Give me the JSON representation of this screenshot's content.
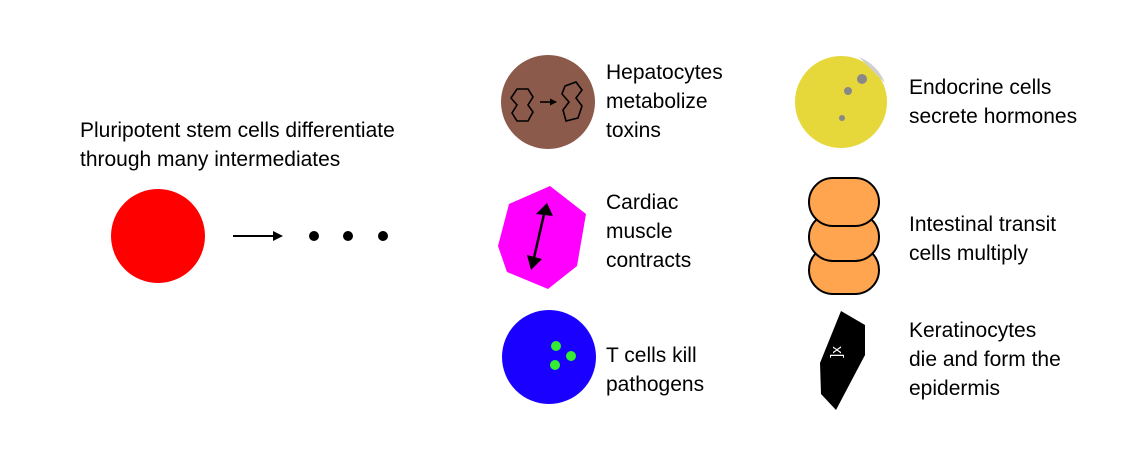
{
  "intro": {
    "text": "Pluripotent stem cells differentiate\nthrough many intermediates",
    "stem_cell_color": "#ff0000"
  },
  "cells": [
    {
      "id": "hepatocyte",
      "label": "Hepatocytes\nmetabolize\ntoxins",
      "color": "#8b5a4a",
      "icon": "molecule-conversion-icon"
    },
    {
      "id": "cardiac",
      "label": "Cardiac\nmuscle\ncontracts",
      "color": "#ff00ff",
      "icon": "double-arrow-icon"
    },
    {
      "id": "tcell",
      "label": "T cells kill\npathogens",
      "color": "#1a00ff",
      "accent": "#33ee33",
      "icon": "granules-icon"
    },
    {
      "id": "endocrine",
      "label": "Endocrine cells\nsecrete hormones",
      "color": "#e6d83a",
      "accent": "#888888",
      "icon": "vesicles-icon"
    },
    {
      "id": "intestinal",
      "label": "Intestinal transit\ncells multiply",
      "color": "#ffa550",
      "icon": "stacked-cells-icon"
    },
    {
      "id": "keratinocyte",
      "label": "Keratinocytes\ndie and form the\nepidermis",
      "color": "#000000",
      "icon": "x-mark-icon"
    }
  ]
}
